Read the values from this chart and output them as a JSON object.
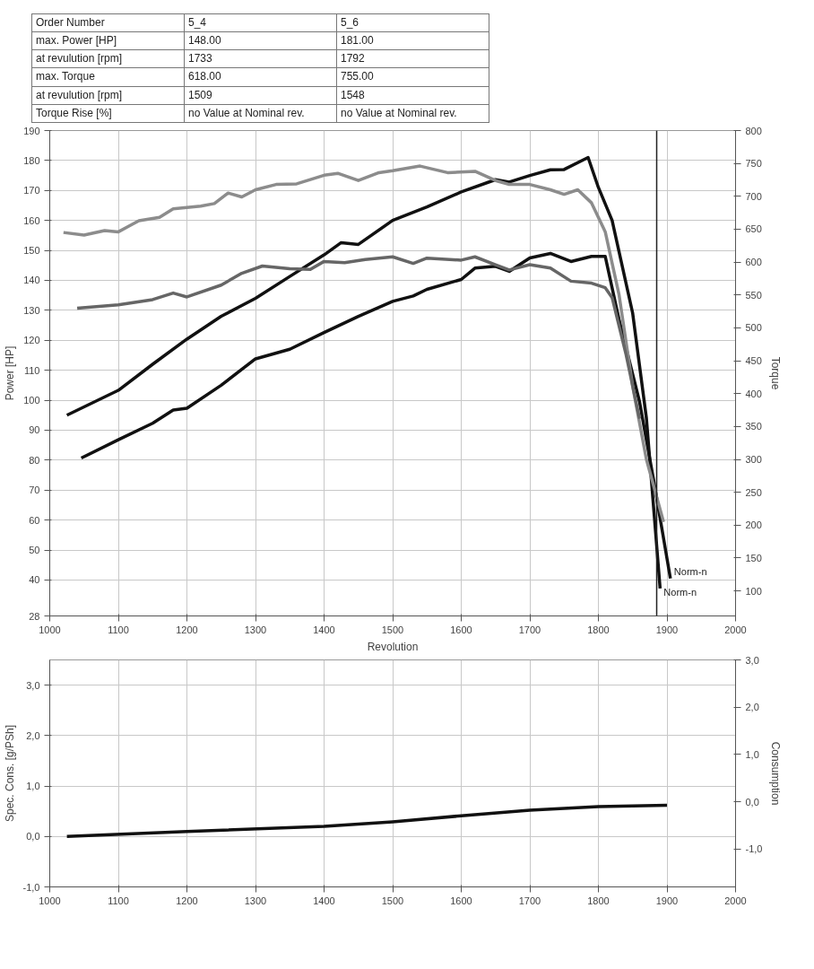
{
  "chart_data": [
    {
      "type": "line",
      "xlabel": "Revolution",
      "ylabel": "Power [HP]",
      "y2label": "Torque",
      "annotations": [
        "Order Number",
        "5_4",
        "5_6",
        "max. Power [HP]",
        "148.00",
        "181.00",
        "at revulution [rpm]",
        "1733",
        "1792",
        "max. Torque",
        "618.00",
        "755.00",
        "at revulution [rpm]",
        "1509",
        "1548",
        "Torque Rise [%]",
        "no Value at Nominal rev.",
        "no Value at Nominal rev.",
        {
          "text": "Norm-n",
          "x": 1905,
          "y": 40.5
        },
        {
          "text": "Norm-n",
          "x": 1890,
          "y": 37
        }
      ],
      "xlim": [
        1000,
        2000
      ],
      "xticks": [
        1000,
        1100,
        1200,
        1300,
        1400,
        1500,
        1600,
        1700,
        1800,
        1900,
        2000
      ],
      "ylim": [
        28,
        190
      ],
      "yticks": [
        28,
        40,
        50,
        60,
        70,
        80,
        90,
        100,
        110,
        120,
        130,
        140,
        150,
        160,
        170,
        180,
        190
      ],
      "y2lim": [
        62,
        800
      ],
      "y2ticks": [
        100,
        150,
        200,
        250,
        300,
        350,
        400,
        450,
        500,
        550,
        600,
        650,
        700,
        750,
        800
      ],
      "grid": true,
      "line_style": "solid",
      "marker": "none",
      "ref_lines": [
        {
          "axis": "x",
          "value": 1885,
          "color": "#222222"
        }
      ],
      "series": [
        {
          "color": "#111111",
          "x": [
            1025,
            1100,
            1150,
            1200,
            1250,
            1300,
            1350,
            1400,
            1425,
            1450,
            1500,
            1550,
            1600,
            1650,
            1670,
            1700,
            1730,
            1750,
            1785,
            1800,
            1820,
            1850,
            1870,
            1890
          ],
          "values": [
            95,
            103.3,
            112,
            120.4,
            128,
            134,
            141.3,
            148.5,
            152.6,
            152,
            160,
            164.5,
            169.5,
            173.6,
            172.8,
            175,
            176.9,
            177,
            181,
            171,
            160,
            129,
            94,
            37.2
          ]
        },
        {
          "color": "#111111",
          "x": [
            1046,
            1100,
            1150,
            1180,
            1200,
            1250,
            1300,
            1350,
            1400,
            1450,
            1500,
            1530,
            1550,
            1600,
            1620,
            1650,
            1670,
            1700,
            1730,
            1760,
            1790,
            1810,
            1830,
            1860,
            1880,
            1905
          ],
          "values": [
            80.7,
            86.8,
            92.3,
            96.7,
            97.3,
            105,
            113.8,
            117,
            122.6,
            128,
            133,
            134.8,
            137,
            140.3,
            144.1,
            144.7,
            143,
            147.5,
            149,
            146.3,
            148,
            148,
            127,
            99.5,
            74,
            40.5
          ]
        },
        {
          "color": "#8c8c8c",
          "axis": "y2",
          "x": [
            1020,
            1050,
            1080,
            1100,
            1130,
            1160,
            1180,
            1220,
            1240,
            1260,
            1280,
            1300,
            1330,
            1360,
            1400,
            1420,
            1450,
            1480,
            1500,
            1540,
            1580,
            1620,
            1650,
            1670,
            1700,
            1730,
            1750,
            1770,
            1790,
            1810,
            1830,
            1850,
            1870,
            1895
          ],
          "values": [
            645,
            641,
            648,
            646,
            663,
            668,
            681,
            685,
            689,
            705,
            699,
            710,
            718,
            719,
            732,
            735,
            724,
            736,
            739,
            746,
            736,
            738,
            724,
            718,
            718,
            710,
            703,
            710,
            690,
            646,
            551,
            411,
            300,
            205
          ]
        },
        {
          "color": "#666666",
          "axis": "y2",
          "x": [
            1040,
            1100,
            1150,
            1180,
            1200,
            1250,
            1280,
            1310,
            1350,
            1380,
            1400,
            1430,
            1460,
            1500,
            1530,
            1550,
            1600,
            1620,
            1650,
            1670,
            1700,
            1730,
            1760,
            1790,
            1810,
            1820,
            1840,
            1860
          ],
          "values": [
            530,
            535,
            543,
            553,
            547,
            565,
            583,
            594,
            590,
            589,
            601,
            599,
            604,
            608,
            598,
            606,
            603,
            608,
            596,
            588,
            596,
            591,
            571,
            568,
            561,
            546,
            461,
            362
          ]
        }
      ]
    },
    {
      "type": "line",
      "ylabel": "Spec. Cons. [g/PSh]",
      "y2label": "Consumption",
      "xlim": [
        1000,
        2000
      ],
      "xticks": [
        1000,
        1100,
        1200,
        1300,
        1400,
        1500,
        1600,
        1700,
        1800,
        1900,
        2000
      ],
      "ylim": [
        -1.0,
        3.5
      ],
      "yticks": [
        {
          "value": -1,
          "label": "-1,0"
        },
        {
          "value": 0,
          "label": "0,0"
        },
        {
          "value": 1,
          "label": "1,0"
        },
        {
          "value": 2,
          "label": "2,0"
        },
        {
          "value": 3,
          "label": "3,0"
        }
      ],
      "y2lim": [
        -1.8,
        3.0
      ],
      "y2ticks": [
        {
          "value": -1,
          "label": "-1,0"
        },
        {
          "value": 0,
          "label": "0,0"
        },
        {
          "value": 1,
          "label": "1,0"
        },
        {
          "value": 2,
          "label": "2,0"
        },
        {
          "value": 3,
          "label": "3,0"
        }
      ],
      "grid": true,
      "line_style": "solid",
      "marker": "none",
      "series": [
        {
          "color": "#111111",
          "x": [
            1025,
            1200,
            1400,
            1500,
            1600,
            1700,
            1800,
            1900
          ],
          "values": [
            0.0,
            0.1,
            0.2,
            0.29,
            0.41,
            0.52,
            0.59,
            0.62
          ]
        }
      ]
    }
  ]
}
